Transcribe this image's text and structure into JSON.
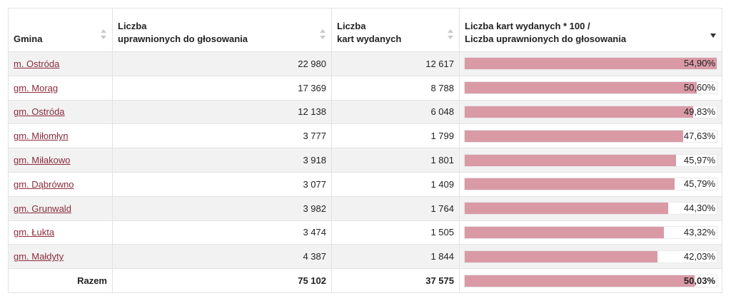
{
  "headers": {
    "gmina": "Gmina",
    "uprawnieni": [
      "Liczba",
      "uprawnionych do głosowania"
    ],
    "wydane": [
      "Liczba",
      "kart wydanych"
    ],
    "frekwencja": [
      "Liczba kart wydanych * 100 /",
      "Liczba uprawnionych do głosowania"
    ]
  },
  "rows": [
    {
      "name": "m. Ostróda",
      "uprawnieni": "22 980",
      "wydane": "12 617",
      "pct_label": "54,90%",
      "pct": 54.9
    },
    {
      "name": "gm. Morąg",
      "uprawnieni": "17 369",
      "wydane": "8 788",
      "pct_label": "50,60%",
      "pct": 50.6
    },
    {
      "name": "gm. Ostróda",
      "uprawnieni": "12 138",
      "wydane": "6 048",
      "pct_label": "49,83%",
      "pct": 49.83
    },
    {
      "name": "gm. Miłomłyn",
      "uprawnieni": "3 777",
      "wydane": "1 799",
      "pct_label": "47,63%",
      "pct": 47.63
    },
    {
      "name": "gm. Miłakowo",
      "uprawnieni": "3 918",
      "wydane": "1 801",
      "pct_label": "45,97%",
      "pct": 45.97
    },
    {
      "name": "gm. Dąbrówno",
      "uprawnieni": "3 077",
      "wydane": "1 409",
      "pct_label": "45,79%",
      "pct": 45.79
    },
    {
      "name": "gm. Grunwald",
      "uprawnieni": "3 982",
      "wydane": "1 764",
      "pct_label": "44,30%",
      "pct": 44.3
    },
    {
      "name": "gm. Łukta",
      "uprawnieni": "3 474",
      "wydane": "1 505",
      "pct_label": "43,32%",
      "pct": 43.32
    },
    {
      "name": "gm. Małdyty",
      "uprawnieni": "4 387",
      "wydane": "1 844",
      "pct_label": "42,03%",
      "pct": 42.03
    }
  ],
  "total": {
    "name": "Razem",
    "uprawnieni": "75 102",
    "wydane": "37 575",
    "pct_label": "50,03%",
    "pct": 50.03
  },
  "colors": {
    "bar": "#d99aa6",
    "link": "#8a2c3c"
  }
}
